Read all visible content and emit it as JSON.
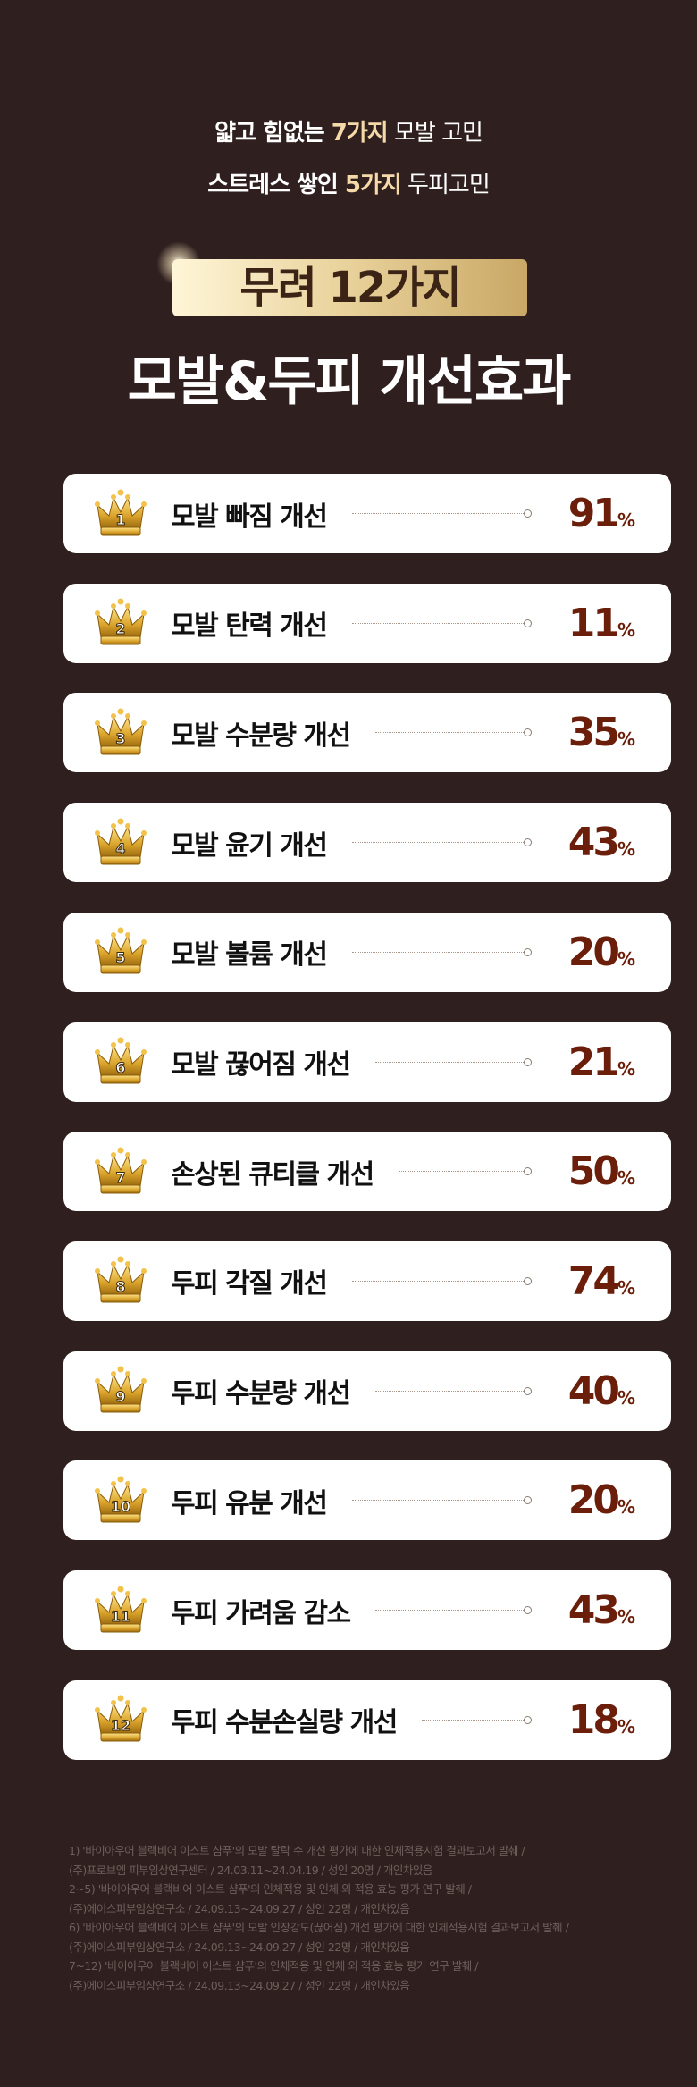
{
  "header": {
    "line1": {
      "pre": "얇고 힘없는 ",
      "highlight": "7가지",
      "post": " 모발 고민"
    },
    "line2": {
      "pre": "스트레스 쌓인 ",
      "highlight": "5가지",
      "post": " 두피고민"
    },
    "badge": "무려 12가지",
    "title": "모발&두피 개선효과"
  },
  "colors": {
    "background": "#2f1f1e",
    "value": "#6b1f0a",
    "highlight": "#f5d9a8"
  },
  "items": [
    {
      "rank": "1",
      "label": "모발 빠짐 개선",
      "value": "91",
      "unit": "%"
    },
    {
      "rank": "2",
      "label": "모발 탄력 개선",
      "value": "11",
      "unit": "%"
    },
    {
      "rank": "3",
      "label": "모발 수분량 개선",
      "value": "35",
      "unit": "%"
    },
    {
      "rank": "4",
      "label": "모발 윤기 개선",
      "value": "43",
      "unit": "%"
    },
    {
      "rank": "5",
      "label": "모발 볼륨 개선",
      "value": "20",
      "unit": "%"
    },
    {
      "rank": "6",
      "label": "모발 끊어짐 개선",
      "value": "21",
      "unit": "%"
    },
    {
      "rank": "7",
      "label": "손상된 큐티클 개선",
      "value": "50",
      "unit": "%"
    },
    {
      "rank": "8",
      "label": "두피 각질 개선",
      "value": "74",
      "unit": "%"
    },
    {
      "rank": "9",
      "label": "두피 수분량 개선",
      "value": "40",
      "unit": "%"
    },
    {
      "rank": "10",
      "label": "두피 유분 개선",
      "value": "20",
      "unit": "%"
    },
    {
      "rank": "11",
      "label": "두피 가려움 감소",
      "value": "43",
      "unit": "%"
    },
    {
      "rank": "12",
      "label": "두피 수분손실량 개선",
      "value": "18",
      "unit": "%"
    }
  ],
  "footnotes": [
    "1) '바이아우어 블랙비어 이스트 샴푸'의 모발 탈락 수 개선 평가에 대한 인체적용시험 결과보고서 발췌 /",
    "(주)프로브엠 피부임상연구센터 / 24.03.11~24.04.19 / 성인 20명 / 개인차있음",
    "2~5) '바이아우어 블랙비어 이스트 샴푸'의 인체적용 및 인체 외 적용 효능 평가 연구 발췌 /",
    "(주)에이스피부임상연구소 / 24.09.13~24.09.27 / 성인 22명 / 개인차있음",
    "6) '바이아우어 블랙비어 이스트 샴푸'의 모발 인장강도(끊어짐) 개선 평가에 대한 인체적용시험 결과보고서 발췌 /",
    "(주)에이스피부임상연구소 / 24.09.13~24.09.27 / 성인 22명 / 개인차있음",
    "7~12) '바이아우어 블랙비어 이스트 샴푸'의 인체적용 및 인체 외 적용 효능 평가 연구 발췌 /",
    "(주)에이스피부임상연구소 / 24.09.13~24.09.27 / 성인 22명 / 개인차있음"
  ]
}
